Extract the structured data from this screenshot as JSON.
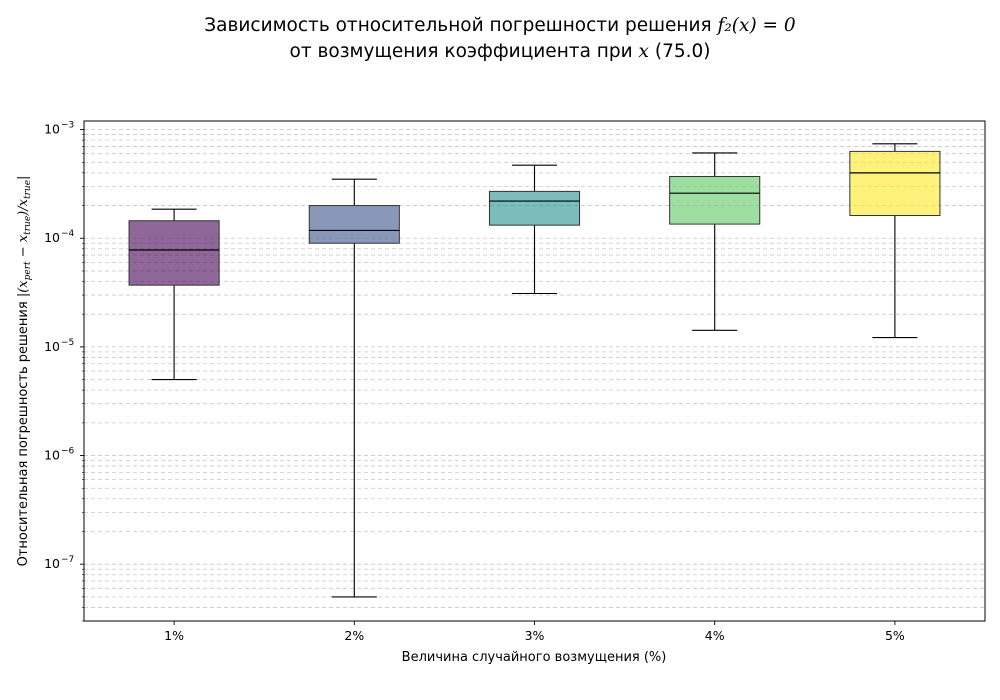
{
  "chart_data": {
    "type": "box",
    "title_line1_prefix": "Зависимость относительной погрешности решения ",
    "title_line1_math": "f₂(x) = 0",
    "title_line2_prefix": "от возмущения коэффициента при ",
    "title_line2_math": "x",
    "title_line2_suffix": " (75.0)",
    "xlabel": "Величина случайного возмущения (%)",
    "ylabel_prefix": "Относительная погрешность решения ",
    "ylabel_math": "|(x",
    "ylabel_sub1": "pert",
    "ylabel_math2": " − x",
    "ylabel_sub2": "true",
    "ylabel_math3": ")/x",
    "ylabel_sub3": "true",
    "ylabel_math4": "|",
    "yscale": "log",
    "ylim": [
      3e-08,
      0.0012
    ],
    "ytick_base": "10",
    "yticks": [
      {
        "value": 1e-07,
        "exp": "−7"
      },
      {
        "value": 1e-06,
        "exp": "−6"
      },
      {
        "value": 1e-05,
        "exp": "−5"
      },
      {
        "value": 0.0001,
        "exp": "−4"
      },
      {
        "value": 0.001,
        "exp": "−3"
      }
    ],
    "grid": "y, dashed, major and minor",
    "categories": [
      "1%",
      "2%",
      "3%",
      "4%",
      "5%"
    ],
    "boxes": [
      {
        "category": "1%",
        "whislo": 5e-06,
        "q1": 3.7e-05,
        "med": 7.8e-05,
        "q3": 0.000145,
        "whishi": 0.000185,
        "color": "#440154"
      },
      {
        "category": "2%",
        "whislo": 5e-08,
        "q1": 9e-05,
        "med": 0.000118,
        "q3": 0.0002,
        "whishi": 0.00035,
        "color": "#3b528b"
      },
      {
        "category": "3%",
        "whislo": 3.1e-05,
        "q1": 0.000132,
        "med": 0.00022,
        "q3": 0.00027,
        "whishi": 0.00047,
        "color": "#21918c"
      },
      {
        "category": "4%",
        "whislo": 1.42e-05,
        "q1": 0.000135,
        "med": 0.00026,
        "q3": 0.00037,
        "whishi": 0.00061,
        "color": "#5ec962"
      },
      {
        "category": "5%",
        "whislo": 1.22e-05,
        "q1": 0.000162,
        "med": 0.0004,
        "q3": 0.00063,
        "whishi": 0.00074,
        "color": "#fde725"
      }
    ]
  }
}
